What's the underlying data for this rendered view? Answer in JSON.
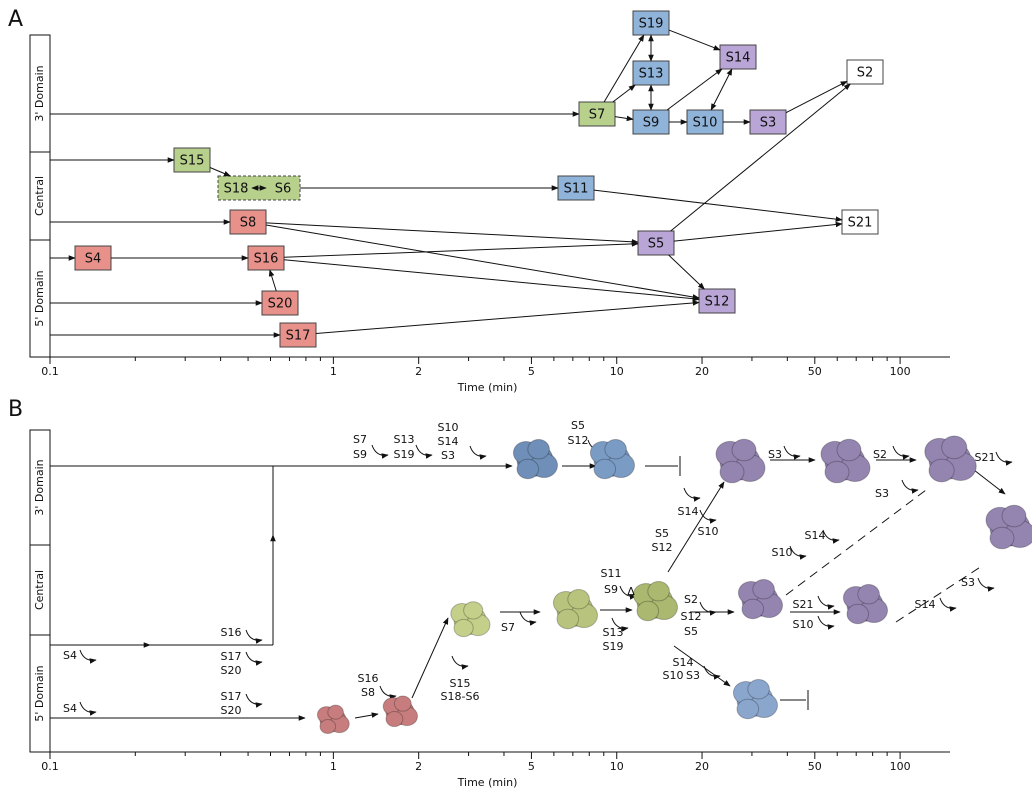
{
  "panel_a": {
    "label": "A",
    "domains": [
      "3' Domain",
      "Central",
      "5' Domain"
    ],
    "nodes": [
      {
        "label": "S19",
        "color": "#8fb3d9"
      },
      {
        "label": "S13",
        "color": "#8fb3d9"
      },
      {
        "label": "S14",
        "color": "#b9a6d6"
      },
      {
        "label": "S2",
        "color": "#ffffff"
      },
      {
        "label": "S7",
        "color": "#b7d08c"
      },
      {
        "label": "S9",
        "color": "#8fb3d9"
      },
      {
        "label": "S10",
        "color": "#8fb3d9"
      },
      {
        "label": "S3",
        "color": "#b9a6d6"
      },
      {
        "label": "S15",
        "color": "#b7d08c"
      },
      {
        "label": "S18",
        "color": "#b7d08c"
      },
      {
        "label": "S6",
        "color": "#b7d08c"
      },
      {
        "label": "S11",
        "color": "#8fb3d9"
      },
      {
        "label": "S21",
        "color": "#ffffff"
      },
      {
        "label": "S8",
        "color": "#e8918b"
      },
      {
        "label": "S5",
        "color": "#b9a6d6"
      },
      {
        "label": "S4",
        "color": "#e8918b"
      },
      {
        "label": "S16",
        "color": "#e8918b"
      },
      {
        "label": "S20",
        "color": "#e8918b"
      },
      {
        "label": "S12",
        "color": "#b9a6d6"
      },
      {
        "label": "S17",
        "color": "#e8918b"
      }
    ],
    "axis": {
      "title": "Time (min)",
      "log": true,
      "xlim": [
        0.1,
        150
      ],
      "xticks": [
        0.1,
        1,
        2,
        5,
        10,
        20,
        50,
        100
      ],
      "minor_ticks": [
        0.2,
        0.3,
        0.4,
        0.5,
        0.6,
        0.7,
        0.8,
        0.9,
        3,
        4,
        6,
        7,
        8,
        9,
        30,
        40,
        60,
        70,
        80,
        90
      ]
    }
  },
  "panel_b": {
    "label": "B",
    "domains": [
      "3' Domain",
      "Central",
      "5' Domain"
    ],
    "labels": [
      "S7",
      "S9",
      "S13",
      "S19",
      "S10",
      "S14",
      "S3",
      "S5",
      "S12",
      "S3",
      "S2",
      "S21",
      "S14",
      "S5",
      "S12",
      "S10",
      "S3",
      "S14",
      "S10",
      "S21",
      "S10",
      "S14",
      "S3",
      "S11",
      "S9",
      "Δ",
      "S13",
      "S19",
      "S2",
      "S12",
      "S5",
      "S7",
      "S15",
      "S18-S6",
      "S14",
      "S10",
      "S3",
      "S16",
      "S17",
      "S20",
      "S4",
      "S16",
      "S8",
      "S17",
      "S20",
      "S4"
    ],
    "axis": {
      "title": "Time (min)",
      "log": true,
      "xlim": [
        0.1,
        150
      ],
      "xticks": [
        0.1,
        1,
        2,
        5,
        10,
        20,
        50,
        100
      ],
      "minor_ticks": [
        0.2,
        0.3,
        0.4,
        0.5,
        0.6,
        0.7,
        0.8,
        0.9,
        3,
        4,
        6,
        7,
        8,
        9,
        30,
        40,
        60,
        70,
        80,
        90
      ]
    }
  }
}
